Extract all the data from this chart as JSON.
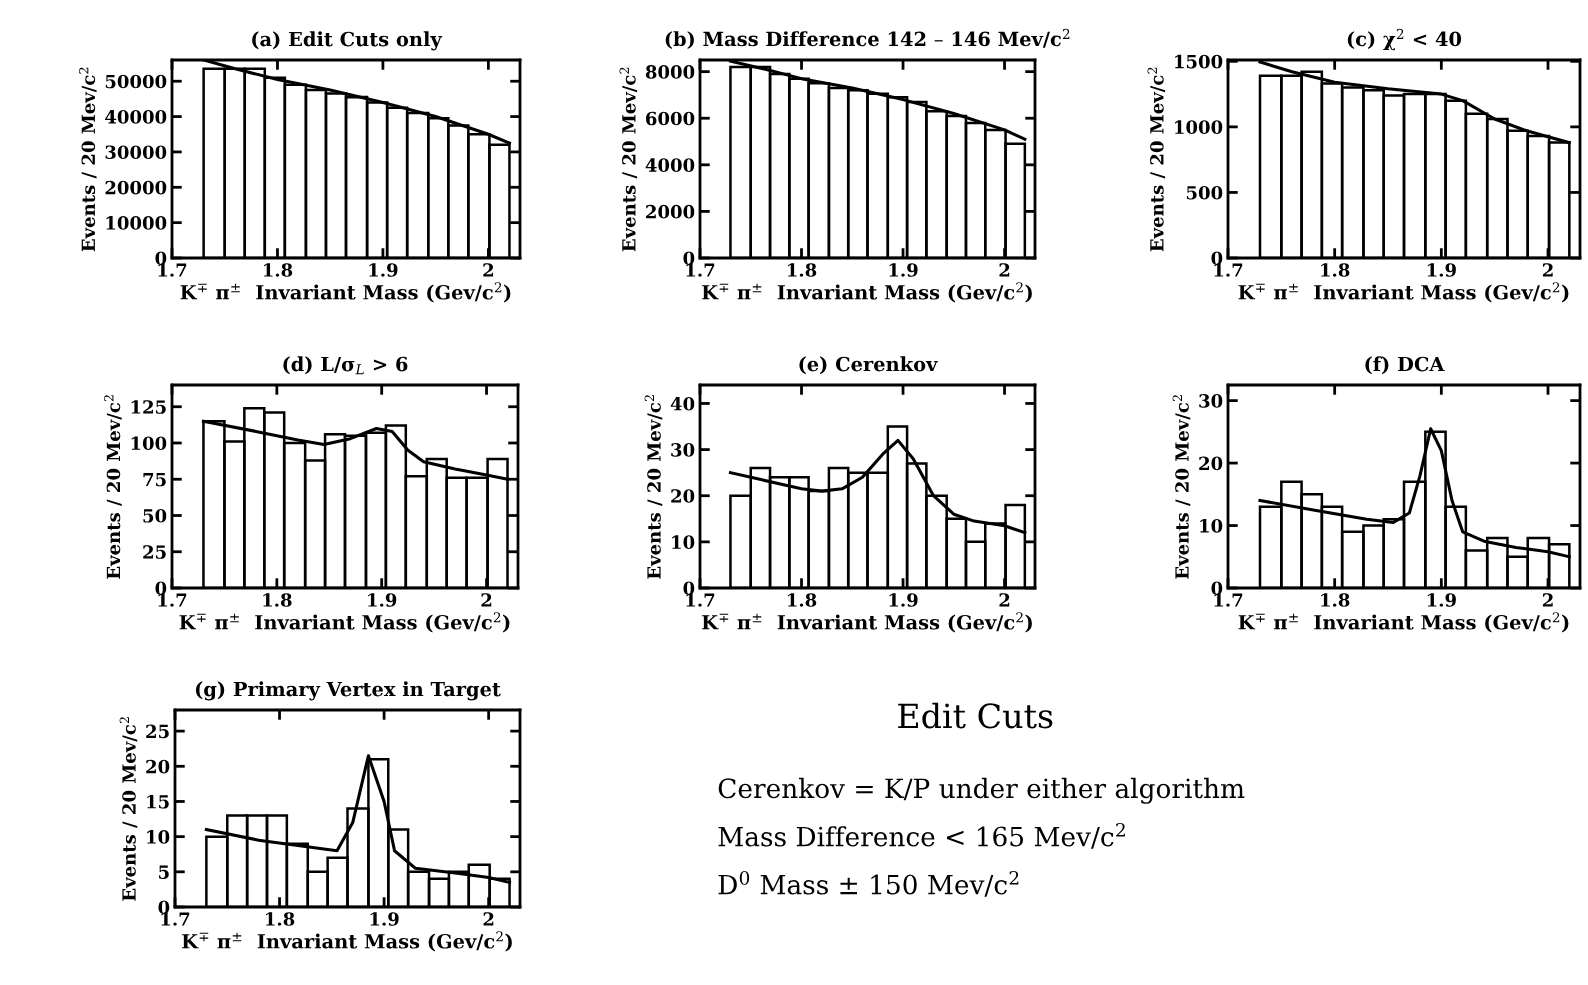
{
  "chart_data": [
    {
      "type": "histogram",
      "title": "(a) Edit Cuts only",
      "xlabel": "K$^{∓}$ π$^{±}$  Invariant Mass (Gev/c$^{2}$)",
      "ylabel": "Events / 20 Mev/c$^{2}$",
      "xlim": [
        1.7,
        2.03
      ],
      "xticks": [
        1.7,
        1.8,
        1.9,
        2
      ],
      "ylim": [
        0,
        56000
      ],
      "yticks": [
        0,
        10000,
        20000,
        30000,
        40000,
        50000
      ],
      "bins": [
        1.73,
        1.75,
        1.769,
        1.788,
        1.807,
        1.827,
        1.846,
        1.865,
        1.885,
        1.904,
        1.923,
        1.943,
        1.962,
        1.981,
        2.001,
        2.02
      ],
      "values": [
        53500,
        53500,
        53500,
        51000,
        49000,
        47500,
        46500,
        45500,
        44000,
        42500,
        41000,
        39500,
        37500,
        35000,
        32000
      ],
      "color": "#000000",
      "series": [
        {
          "type": "line",
          "x": [
            1.73,
            1.76,
            1.8,
            1.85,
            1.9,
            1.95,
            2.0,
            2.02
          ],
          "values": [
            56000,
            53500,
            50500,
            47500,
            44000,
            40000,
            35000,
            32500
          ],
          "color": "#000000"
        }
      ]
    },
    {
      "type": "histogram",
      "title": "(b) Mass Difference 142 – 146 Mev/c$^{2}$",
      "xlabel": "K$^{∓}$ π$^{±}$  Invariant Mass (Gev/c$^{2}$)",
      "ylabel": "Events / 20 Mev/c$^{2}$",
      "xlim": [
        1.7,
        2.03
      ],
      "xticks": [
        1.7,
        1.8,
        1.9,
        2
      ],
      "ylim": [
        0,
        8500
      ],
      "yticks": [
        0,
        2000,
        4000,
        6000,
        8000
      ],
      "bins": [
        1.73,
        1.75,
        1.769,
        1.788,
        1.807,
        1.827,
        1.846,
        1.865,
        1.885,
        1.904,
        1.923,
        1.943,
        1.962,
        1.981,
        2.001,
        2.02
      ],
      "values": [
        8200,
        8200,
        7900,
        7700,
        7500,
        7300,
        7200,
        7050,
        6900,
        6700,
        6300,
        6100,
        5800,
        5500,
        4900
      ],
      "color": "#000000",
      "series": [
        {
          "type": "line",
          "x": [
            1.73,
            1.76,
            1.8,
            1.85,
            1.9,
            1.95,
            2.0,
            2.02
          ],
          "values": [
            8450,
            8150,
            7700,
            7300,
            6800,
            6200,
            5500,
            5100
          ],
          "color": "#000000"
        }
      ]
    },
    {
      "type": "histogram",
      "title": "(c) χ$^{2}$ < 40",
      "xlabel": "K$^{∓}$ π$^{±}$  Invariant Mass (Gev/c$^{2}$)",
      "ylabel": "Events / 20 Mev/c$^{2}$",
      "xlim": [
        1.7,
        2.03
      ],
      "xticks": [
        1.7,
        1.8,
        1.9,
        2
      ],
      "ylim": [
        0,
        1510
      ],
      "yticks": [
        0,
        500,
        1000,
        1500
      ],
      "bins": [
        1.73,
        1.75,
        1.769,
        1.788,
        1.807,
        1.827,
        1.846,
        1.865,
        1.885,
        1.904,
        1.923,
        1.943,
        1.962,
        1.981,
        2.001,
        2.02
      ],
      "values": [
        1390,
        1390,
        1420,
        1330,
        1300,
        1280,
        1240,
        1250,
        1250,
        1200,
        1100,
        1060,
        970,
        930,
        880
      ],
      "color": "#000000",
      "series": [
        {
          "type": "line",
          "x": [
            1.73,
            1.76,
            1.8,
            1.85,
            1.9,
            1.92,
            1.95,
            1.98,
            2.0,
            2.02
          ],
          "values": [
            1495,
            1420,
            1340,
            1290,
            1250,
            1200,
            1060,
            970,
            925,
            880
          ],
          "color": "#000000"
        }
      ]
    },
    {
      "type": "histogram",
      "title": "(d) L/σ$_{L}$ > 6",
      "xlabel": "K$^{∓}$ π$^{±}$  Invariant Mass (Gev/c$^{2}$)",
      "ylabel": "Events / 20 Mev/c$^{2}$",
      "xlim": [
        1.7,
        2.03
      ],
      "xticks": [
        1.7,
        1.8,
        1.9,
        2
      ],
      "ylim": [
        0,
        140
      ],
      "yticks": [
        0,
        25,
        50,
        75,
        100,
        125
      ],
      "bins": [
        1.73,
        1.75,
        1.769,
        1.788,
        1.807,
        1.827,
        1.846,
        1.865,
        1.885,
        1.904,
        1.923,
        1.943,
        1.962,
        1.981,
        2.001,
        2.02
      ],
      "values": [
        115,
        101,
        124,
        121,
        100,
        88,
        106,
        105,
        107,
        112,
        77,
        89,
        76,
        76,
        89
      ],
      "color": "#000000",
      "series": [
        {
          "type": "line",
          "x": [
            1.73,
            1.78,
            1.82,
            1.845,
            1.87,
            1.895,
            1.91,
            1.925,
            1.94,
            1.97,
            2.0,
            2.02
          ],
          "values": [
            115,
            108,
            102,
            99,
            103,
            110,
            108,
            95,
            87,
            82,
            78,
            75
          ],
          "color": "#000000"
        }
      ]
    },
    {
      "type": "histogram",
      "title": "(e) Cerenkov",
      "xlabel": "K$^{∓}$ π$^{±}$  Invariant Mass (Gev/c$^{2}$)",
      "ylabel": "Events / 20 Mev/c$^{2}$",
      "xlim": [
        1.7,
        2.03
      ],
      "xticks": [
        1.7,
        1.8,
        1.9,
        2
      ],
      "ylim": [
        0,
        44
      ],
      "yticks": [
        0,
        10,
        20,
        30,
        40
      ],
      "bins": [
        1.73,
        1.75,
        1.769,
        1.788,
        1.807,
        1.827,
        1.846,
        1.865,
        1.885,
        1.904,
        1.923,
        1.943,
        1.962,
        1.981,
        2.001,
        2.02
      ],
      "values": [
        20,
        26,
        24,
        24,
        21,
        26,
        25,
        25,
        35,
        27,
        20,
        15,
        10,
        14,
        18
      ],
      "color": "#000000",
      "series": [
        {
          "type": "line",
          "x": [
            1.73,
            1.76,
            1.8,
            1.82,
            1.84,
            1.86,
            1.88,
            1.895,
            1.91,
            1.93,
            1.95,
            1.97,
            2.0,
            2.02
          ],
          "values": [
            25,
            23.5,
            21.5,
            21,
            21.5,
            24,
            29,
            32,
            28,
            20,
            16,
            14.5,
            13.5,
            12
          ],
          "color": "#000000"
        }
      ]
    },
    {
      "type": "histogram",
      "title": "(f) DCA",
      "xlabel": "K$^{∓}$ π$^{±}$  Invariant Mass (Gev/c$^{2}$)",
      "ylabel": "Events / 20 Mev/c$^{2}$",
      "xlim": [
        1.7,
        2.03
      ],
      "xticks": [
        1.7,
        1.8,
        1.9,
        2
      ],
      "ylim": [
        0,
        32.5
      ],
      "yticks": [
        0,
        10,
        20,
        30
      ],
      "bins": [
        1.73,
        1.75,
        1.769,
        1.788,
        1.807,
        1.827,
        1.846,
        1.865,
        1.885,
        1.904,
        1.923,
        1.943,
        1.962,
        1.981,
        2.001,
        2.02
      ],
      "values": [
        13,
        17,
        15,
        13,
        9,
        10,
        11,
        17,
        25,
        13,
        6,
        8,
        5,
        8,
        7
      ],
      "color": "#000000",
      "series": [
        {
          "type": "line",
          "x": [
            1.73,
            1.78,
            1.83,
            1.855,
            1.87,
            1.88,
            1.89,
            1.9,
            1.91,
            1.92,
            1.94,
            1.97,
            2.0,
            2.02
          ],
          "values": [
            14,
            12.5,
            11,
            10.5,
            12,
            18,
            25.5,
            22,
            14,
            9,
            7.5,
            6.5,
            5.8,
            5
          ],
          "color": "#000000"
        }
      ]
    },
    {
      "type": "histogram",
      "title": "(g) Primary Vertex in Target",
      "xlabel": "K$^{∓}$ π$^{±}$  Invariant Mass (Gev/c$^{2}$)",
      "ylabel": "Events / 20 Mev/c$^{2}$",
      "xlim": [
        1.7,
        2.03
      ],
      "xticks": [
        1.7,
        1.8,
        1.9,
        2
      ],
      "ylim": [
        0,
        28
      ],
      "yticks": [
        0,
        5,
        10,
        15,
        20,
        25
      ],
      "bins": [
        1.73,
        1.75,
        1.769,
        1.788,
        1.807,
        1.827,
        1.846,
        1.865,
        1.885,
        1.904,
        1.923,
        1.943,
        1.962,
        1.981,
        2.001,
        2.02
      ],
      "values": [
        10,
        13,
        13,
        13,
        9,
        5,
        7,
        14,
        21,
        11,
        5,
        4,
        5,
        6,
        4
      ],
      "color": "#000000",
      "series": [
        {
          "type": "line",
          "x": [
            1.73,
            1.78,
            1.83,
            1.855,
            1.87,
            1.885,
            1.9,
            1.91,
            1.93,
            1.97,
            2.0,
            2.02
          ],
          "values": [
            11,
            9.5,
            8.5,
            8,
            12,
            21.5,
            15,
            8,
            5.5,
            4.8,
            4.2,
            3.5
          ],
          "color": "#000000"
        }
      ]
    },
    {
      "type": "other",
      "title": "Edit Cuts",
      "annotations": [
        "Cerenkov = K/P under either algorithm",
        "Mass Difference < 165 Mev/c$^{2}$",
        "D$^{0}$ Mass ± 150 Mev/c$^{2}$"
      ]
    }
  ]
}
